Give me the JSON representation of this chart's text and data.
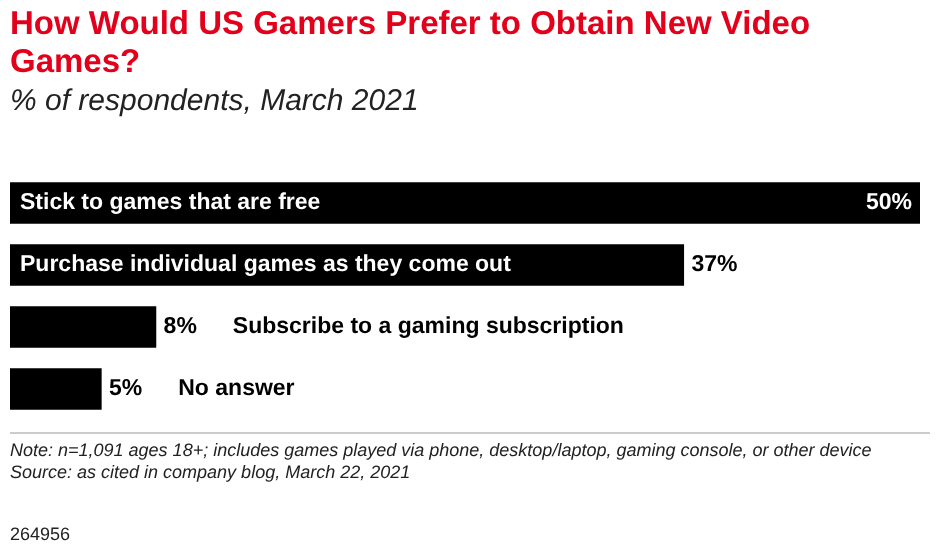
{
  "chart_data": {
    "type": "bar",
    "orientation": "horizontal",
    "title": "How Would US Gamers Prefer to Obtain New Video Games?",
    "subtitle": "% of respondents, March 2021",
    "categories": [
      "Stick to games that are free",
      "Purchase individual games as they come out",
      "Subscribe to a gaming subscription",
      "No answer"
    ],
    "values": [
      50,
      37,
      8,
      5
    ],
    "value_labels": [
      "50%",
      "37%",
      "8%",
      "5%"
    ],
    "color": "#000000",
    "annotations": [
      "Note: n=1,091 ages 18+; includes games played via phone, desktop/laptop, gaming console, or other device",
      "Source: as cited in company blog, March 22, 2021",
      "264956"
    ]
  }
}
